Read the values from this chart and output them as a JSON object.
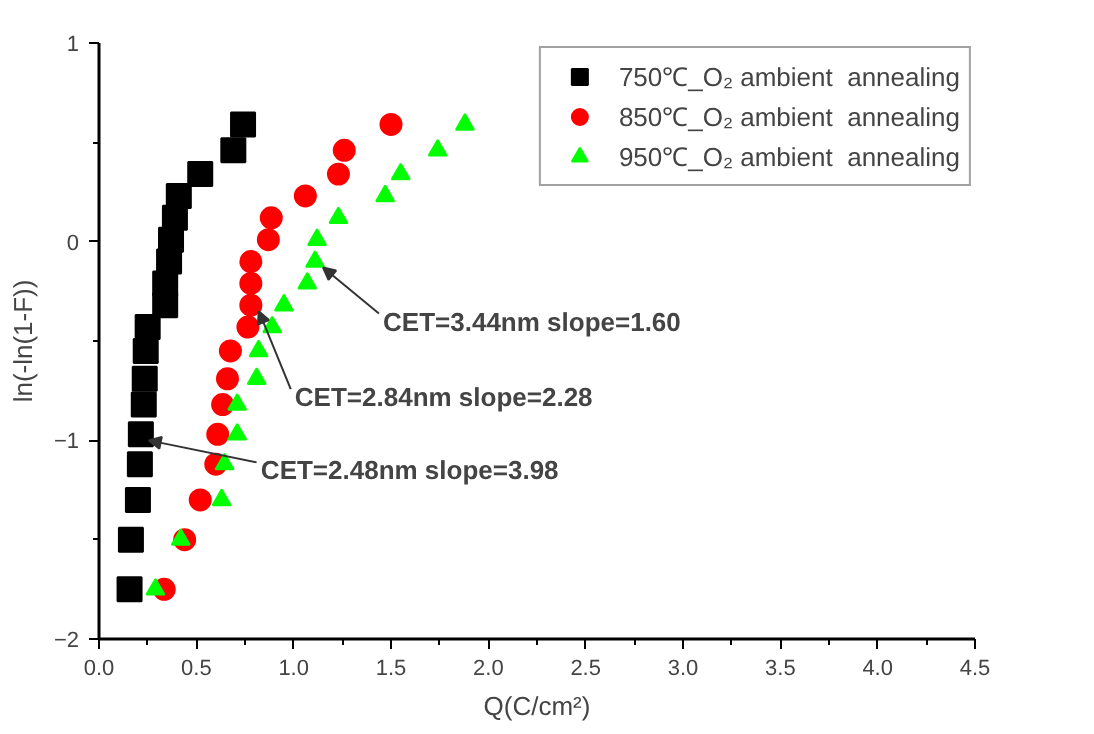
{
  "chart_data": {
    "type": "scatter",
    "xlabel": "Q(C/cm²)",
    "ylabel": "ln(-ln(1-F))",
    "xlim": [
      0,
      4.5
    ],
    "ylim": [
      -2,
      1
    ],
    "xticks": [
      {
        "value": 0,
        "label": "0.0"
      },
      {
        "value": 0.5,
        "label": "0.5"
      },
      {
        "value": 1,
        "label": "1.0"
      },
      {
        "value": 1.5,
        "label": "1.5"
      },
      {
        "value": 2,
        "label": "2.0"
      },
      {
        "value": 2.5,
        "label": "2.5"
      },
      {
        "value": 3,
        "label": "3.0"
      },
      {
        "value": 3.5,
        "label": "3.5"
      },
      {
        "value": 4,
        "label": "4.0"
      },
      {
        "value": 4.5,
        "label": "4.5"
      }
    ],
    "yticks": [
      -2,
      -1,
      0,
      1
    ],
    "grid": false,
    "legend": "top right",
    "series": [
      {
        "name": "750℃_O₂ ambient  annealing",
        "color": "#000000",
        "marker": "square",
        "x": [
          0.157,
          0.164,
          0.2,
          0.21,
          0.215,
          0.23,
          0.235,
          0.24,
          0.25,
          0.34,
          0.34,
          0.36,
          0.37,
          0.39,
          0.41,
          0.52,
          0.69,
          0.74
        ],
        "values": [
          -1.75,
          -1.5,
          -1.3,
          -1.12,
          -0.97,
          -0.82,
          -0.69,
          -0.55,
          -0.43,
          -0.32,
          -0.21,
          -0.1,
          0.01,
          0.12,
          0.23,
          0.34,
          0.46,
          0.59
        ]
      },
      {
        "name": "850℃_O₂ ambient  annealing",
        "color": "#ff0000",
        "marker": "circle",
        "x": [
          0.335,
          0.44,
          0.52,
          0.6,
          0.61,
          0.635,
          0.66,
          0.675,
          0.765,
          0.78,
          0.78,
          0.78,
          0.87,
          0.885,
          1.06,
          1.23,
          1.26,
          1.5
        ],
        "values": [
          -1.75,
          -1.5,
          -1.3,
          -1.12,
          -0.97,
          -0.82,
          -0.69,
          -0.55,
          -0.43,
          -0.32,
          -0.21,
          -0.1,
          0.01,
          0.12,
          0.23,
          0.34,
          0.46,
          0.59
        ]
      },
      {
        "name": "950℃_O₂ ambient  annealing",
        "color": "#00ff00",
        "marker": "triangle",
        "x": [
          0.29,
          0.42,
          0.63,
          0.645,
          0.71,
          0.71,
          0.81,
          0.82,
          0.89,
          0.95,
          1.07,
          1.11,
          1.12,
          1.23,
          1.47,
          1.55,
          1.74,
          1.88
        ],
        "values": [
          -1.75,
          -1.5,
          -1.3,
          -1.12,
          -0.97,
          -0.82,
          -0.69,
          -0.55,
          -0.43,
          -0.32,
          -0.21,
          -0.1,
          0.01,
          0.12,
          0.23,
          0.34,
          0.46,
          0.59
        ]
      }
    ],
    "annotations": [
      {
        "text": "CET=3.44nm slope=1.60",
        "x": 1.11,
        "y": -0.1
      },
      {
        "text": "CET=2.84nm slope=2.28",
        "x": 0.78,
        "y": -0.32
      },
      {
        "text": "CET=2.48nm slope=3.98",
        "x": 0.215,
        "y": -0.97
      }
    ]
  }
}
